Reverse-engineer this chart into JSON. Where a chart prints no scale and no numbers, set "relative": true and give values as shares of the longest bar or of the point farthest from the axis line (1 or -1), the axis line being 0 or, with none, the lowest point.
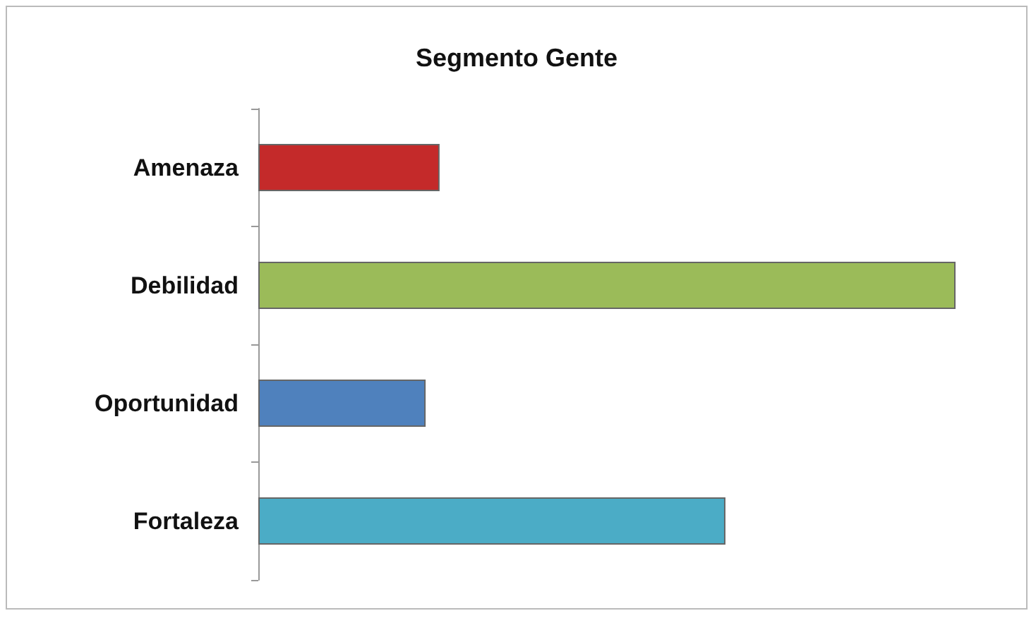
{
  "chart_data": {
    "type": "bar",
    "title": "Segmento Gente",
    "orientation": "horizontal",
    "relative": true,
    "categories": [
      "Amenaza",
      "Debilidad",
      "Oportunidad",
      "Fortaleza"
    ],
    "values": [
      0.26,
      1,
      0.24,
      0.67
    ],
    "colors": [
      "#c42a2a",
      "#9bbb59",
      "#4f81bd",
      "#4bacc6"
    ]
  }
}
